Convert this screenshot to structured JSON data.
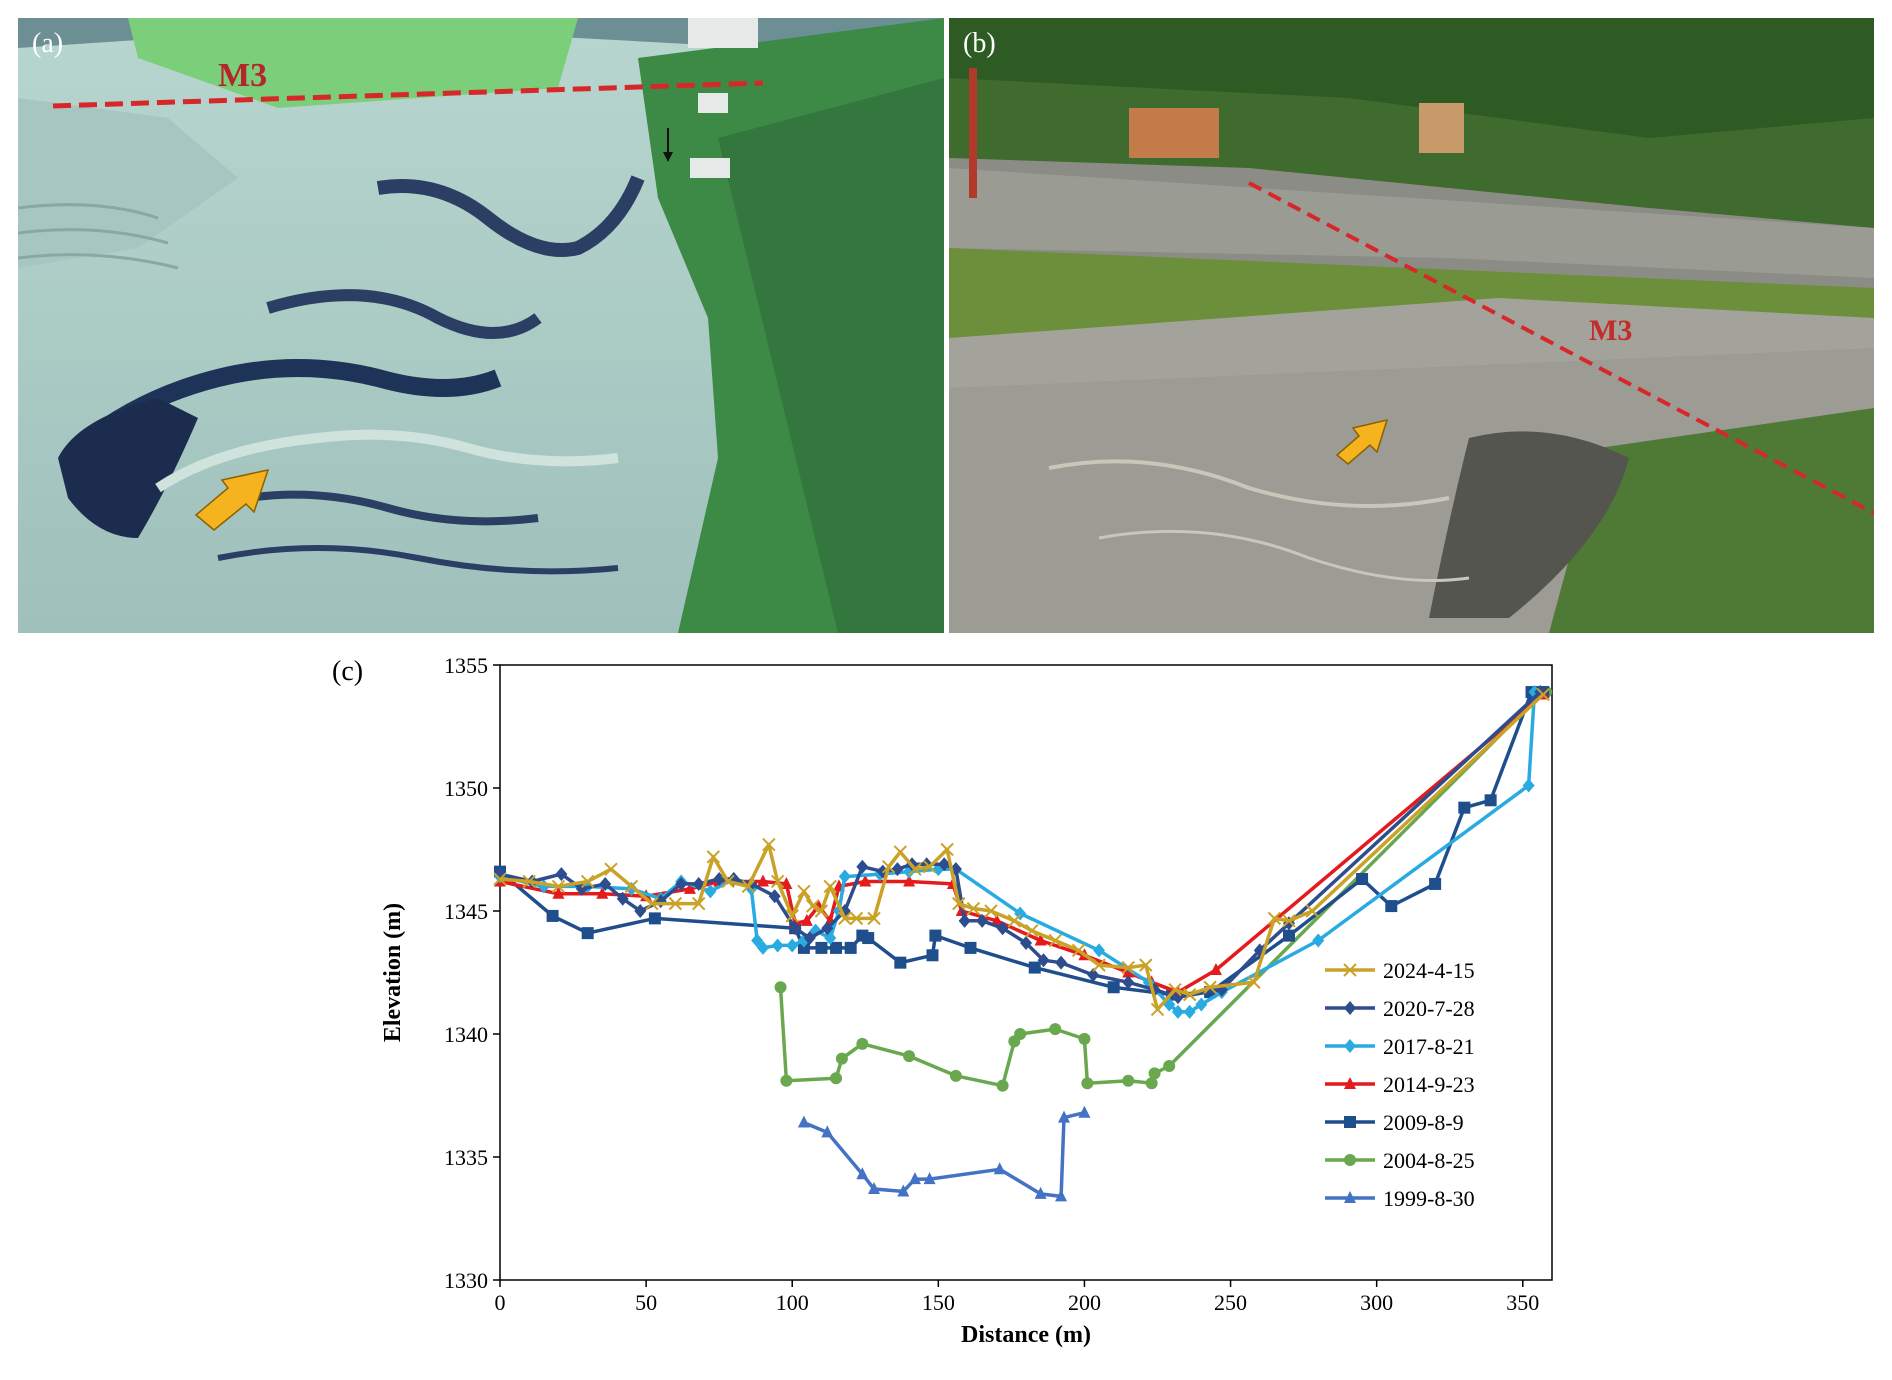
{
  "panels": {
    "a": {
      "label": "(a)",
      "annotation": "M3"
    },
    "b": {
      "label": "(b)",
      "annotation": "M3"
    },
    "c": {
      "label": "(c)"
    }
  },
  "colors": {
    "m3_line": "#d62828",
    "arrow": "#f5b41f"
  },
  "chart_data": {
    "type": "line",
    "xlabel": "Distance (m)",
    "ylabel": "Elevation (m)",
    "xlim": [
      0,
      360
    ],
    "ylim": [
      1330,
      1355
    ],
    "xticks": [
      0,
      50,
      100,
      150,
      200,
      250,
      300,
      350
    ],
    "yticks": [
      1330,
      1335,
      1340,
      1345,
      1350,
      1355
    ],
    "legend_position": "right",
    "series": [
      {
        "name": "2024-4-15",
        "color": "#c9a227",
        "marker": "x",
        "points": [
          [
            0,
            1346.3
          ],
          [
            10,
            1346.2
          ],
          [
            20,
            1346.0
          ],
          [
            30,
            1346.2
          ],
          [
            38,
            1346.7
          ],
          [
            45,
            1346.0
          ],
          [
            52,
            1345.3
          ],
          [
            60,
            1345.3
          ],
          [
            68,
            1345.3
          ],
          [
            73,
            1347.2
          ],
          [
            78,
            1346.2
          ],
          [
            85,
            1346.0
          ],
          [
            92,
            1347.7
          ],
          [
            95,
            1346.2
          ],
          [
            100,
            1344.8
          ],
          [
            104,
            1345.8
          ],
          [
            107,
            1345.2
          ],
          [
            110,
            1345.0
          ],
          [
            113,
            1346.0
          ],
          [
            118,
            1344.7
          ],
          [
            122,
            1344.7
          ],
          [
            128,
            1344.7
          ],
          [
            133,
            1346.8
          ],
          [
            137,
            1347.4
          ],
          [
            142,
            1346.7
          ],
          [
            147,
            1346.8
          ],
          [
            153,
            1347.5
          ],
          [
            157,
            1345.3
          ],
          [
            162,
            1345.1
          ],
          [
            168,
            1345.0
          ],
          [
            176,
            1344.6
          ],
          [
            182,
            1344.2
          ],
          [
            190,
            1343.8
          ],
          [
            198,
            1343.4
          ],
          [
            205,
            1342.8
          ],
          [
            215,
            1342.7
          ],
          [
            221,
            1342.8
          ],
          [
            225,
            1341.0
          ],
          [
            231,
            1341.8
          ],
          [
            236,
            1341.6
          ],
          [
            243,
            1341.9
          ],
          [
            258,
            1342.1
          ],
          [
            265,
            1344.7
          ],
          [
            270,
            1344.6
          ],
          [
            278,
            1345.0
          ],
          [
            357,
            1353.8
          ]
        ]
      },
      {
        "name": "2020-7-28",
        "color": "#2e4d8e",
        "marker": "diamond",
        "points": [
          [
            0,
            1346.5
          ],
          [
            11,
            1346.2
          ],
          [
            21,
            1346.5
          ],
          [
            28,
            1345.9
          ],
          [
            36,
            1346.1
          ],
          [
            42,
            1345.5
          ],
          [
            48,
            1345.0
          ],
          [
            55,
            1345.4
          ],
          [
            62,
            1346.1
          ],
          [
            68,
            1346.1
          ],
          [
            75,
            1346.3
          ],
          [
            80,
            1346.3
          ],
          [
            86,
            1346.1
          ],
          [
            94,
            1345.6
          ],
          [
            101,
            1344.3
          ],
          [
            106,
            1343.9
          ],
          [
            112,
            1344.3
          ],
          [
            118,
            1345.0
          ],
          [
            124,
            1346.8
          ],
          [
            131,
            1346.6
          ],
          [
            136,
            1346.7
          ],
          [
            141,
            1346.9
          ],
          [
            146,
            1346.9
          ],
          [
            152,
            1346.9
          ],
          [
            156,
            1346.7
          ],
          [
            159,
            1344.6
          ],
          [
            165,
            1344.6
          ],
          [
            172,
            1344.3
          ],
          [
            180,
            1343.7
          ],
          [
            186,
            1343.0
          ],
          [
            192,
            1342.9
          ],
          [
            203,
            1342.4
          ],
          [
            215,
            1342.1
          ],
          [
            224,
            1341.8
          ],
          [
            232,
            1341.5
          ],
          [
            247,
            1341.8
          ],
          [
            260,
            1343.4
          ],
          [
            270,
            1344.5
          ],
          [
            356,
            1353.9
          ]
        ]
      },
      {
        "name": "2017-8-21",
        "color": "#29abe2",
        "marker": "diamond",
        "points": [
          [
            0,
            1346.4
          ],
          [
            15,
            1346.0
          ],
          [
            30,
            1346.0
          ],
          [
            45,
            1345.9
          ],
          [
            55,
            1345.5
          ],
          [
            62,
            1346.2
          ],
          [
            72,
            1345.8
          ],
          [
            80,
            1346.3
          ],
          [
            86,
            1345.9
          ],
          [
            88,
            1343.8
          ],
          [
            90,
            1343.5
          ],
          [
            95,
            1343.6
          ],
          [
            100,
            1343.6
          ],
          [
            104,
            1343.8
          ],
          [
            108,
            1344.2
          ],
          [
            113,
            1343.9
          ],
          [
            116,
            1345.0
          ],
          [
            118,
            1346.4
          ],
          [
            130,
            1346.5
          ],
          [
            140,
            1346.6
          ],
          [
            150,
            1346.7
          ],
          [
            156,
            1346.7
          ],
          [
            178,
            1344.9
          ],
          [
            205,
            1343.4
          ],
          [
            222,
            1342.1
          ],
          [
            229,
            1341.2
          ],
          [
            232,
            1340.9
          ],
          [
            236,
            1340.9
          ],
          [
            240,
            1341.2
          ],
          [
            247,
            1341.7
          ],
          [
            280,
            1343.8
          ],
          [
            352,
            1350.1
          ],
          [
            354,
            1353.9
          ]
        ]
      },
      {
        "name": "2014-9-23",
        "color": "#e41a1c",
        "marker": "triangle",
        "points": [
          [
            0,
            1346.2
          ],
          [
            20,
            1345.7
          ],
          [
            35,
            1345.7
          ],
          [
            50,
            1345.6
          ],
          [
            65,
            1345.9
          ],
          [
            75,
            1346.2
          ],
          [
            90,
            1346.2
          ],
          [
            98,
            1346.1
          ],
          [
            101,
            1344.5
          ],
          [
            105,
            1344.6
          ],
          [
            109,
            1345.2
          ],
          [
            113,
            1344.6
          ],
          [
            116,
            1346.0
          ],
          [
            125,
            1346.2
          ],
          [
            140,
            1346.2
          ],
          [
            155,
            1346.1
          ],
          [
            158,
            1345.0
          ],
          [
            170,
            1344.6
          ],
          [
            185,
            1343.8
          ],
          [
            200,
            1343.2
          ],
          [
            215,
            1342.5
          ],
          [
            223,
            1342.1
          ],
          [
            232,
            1341.7
          ],
          [
            245,
            1342.6
          ],
          [
            357,
            1353.8
          ]
        ]
      },
      {
        "name": "2009-8-9",
        "color": "#1f4e8c",
        "marker": "square",
        "points": [
          [
            0,
            1346.6
          ],
          [
            18,
            1344.8
          ],
          [
            30,
            1344.1
          ],
          [
            53,
            1344.7
          ],
          [
            101,
            1344.3
          ],
          [
            104,
            1343.5
          ],
          [
            110,
            1343.5
          ],
          [
            115,
            1343.5
          ],
          [
            120,
            1343.5
          ],
          [
            124,
            1344.0
          ],
          [
            126,
            1343.9
          ],
          [
            137,
            1342.9
          ],
          [
            148,
            1343.2
          ],
          [
            149,
            1344.0
          ],
          [
            161,
            1343.5
          ],
          [
            183,
            1342.7
          ],
          [
            210,
            1341.9
          ],
          [
            230,
            1341.6
          ],
          [
            243,
            1341.7
          ],
          [
            270,
            1344.0
          ],
          [
            295,
            1346.3
          ],
          [
            305,
            1345.2
          ],
          [
            320,
            1346.1
          ],
          [
            330,
            1349.2
          ],
          [
            339,
            1349.5
          ],
          [
            353,
            1353.9
          ],
          [
            357,
            1353.9
          ]
        ]
      },
      {
        "name": "2004-8-25",
        "color": "#6aa84f",
        "marker": "circle",
        "points": [
          [
            96,
            1341.9
          ],
          [
            98,
            1338.1
          ],
          [
            115,
            1338.2
          ],
          [
            117,
            1339.0
          ],
          [
            124,
            1339.6
          ],
          [
            140,
            1339.1
          ],
          [
            156,
            1338.3
          ],
          [
            172,
            1337.9
          ],
          [
            176,
            1339.7
          ],
          [
            178,
            1340.0
          ],
          [
            190,
            1340.2
          ],
          [
            200,
            1339.8
          ],
          [
            201,
            1338.0
          ],
          [
            215,
            1338.1
          ],
          [
            223,
            1338.0
          ],
          [
            224,
            1338.4
          ],
          [
            229,
            1338.7
          ],
          [
            357,
            1353.9
          ],
          [
            358,
            1353.9
          ]
        ]
      },
      {
        "name": "1999-8-30",
        "color": "#4472c4",
        "marker": "triangle",
        "points": [
          [
            104,
            1336.4
          ],
          [
            112,
            1336.0
          ],
          [
            124,
            1334.3
          ],
          [
            128,
            1333.7
          ],
          [
            138,
            1333.6
          ],
          [
            142,
            1334.1
          ],
          [
            147,
            1334.1
          ],
          [
            171,
            1334.5
          ],
          [
            185,
            1333.5
          ],
          [
            192,
            1333.4
          ],
          [
            193,
            1336.6
          ],
          [
            200,
            1336.8
          ]
        ]
      }
    ]
  }
}
